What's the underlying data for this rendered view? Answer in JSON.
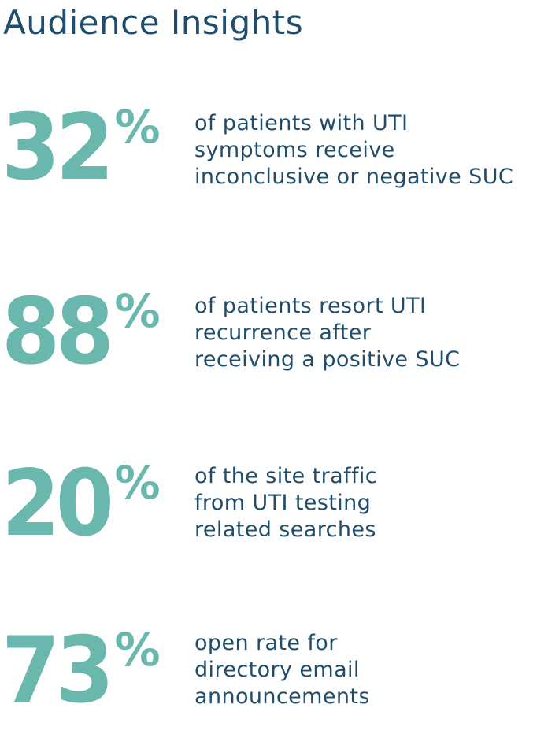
{
  "header": {
    "title": "Audience Insights"
  },
  "colors": {
    "heading": "#1f4d6b",
    "accent": "#6ab8ad",
    "background": "#ffffff"
  },
  "stats": [
    {
      "value": "32",
      "unit": "%",
      "lines": [
        "of patients with UTI",
        "symptoms receive",
        "inconclusive or negative SUC"
      ]
    },
    {
      "value": "88",
      "unit": "%",
      "lines": [
        "of patients resort UTI",
        "recurrence after",
        "receiving a positive SUC"
      ]
    },
    {
      "value": "20",
      "unit": "%",
      "lines": [
        "of the site traffic",
        "from UTI testing",
        "related searches"
      ]
    },
    {
      "value": "73",
      "unit": "%",
      "lines": [
        "open rate for",
        "directory email",
        "announcements"
      ]
    }
  ]
}
